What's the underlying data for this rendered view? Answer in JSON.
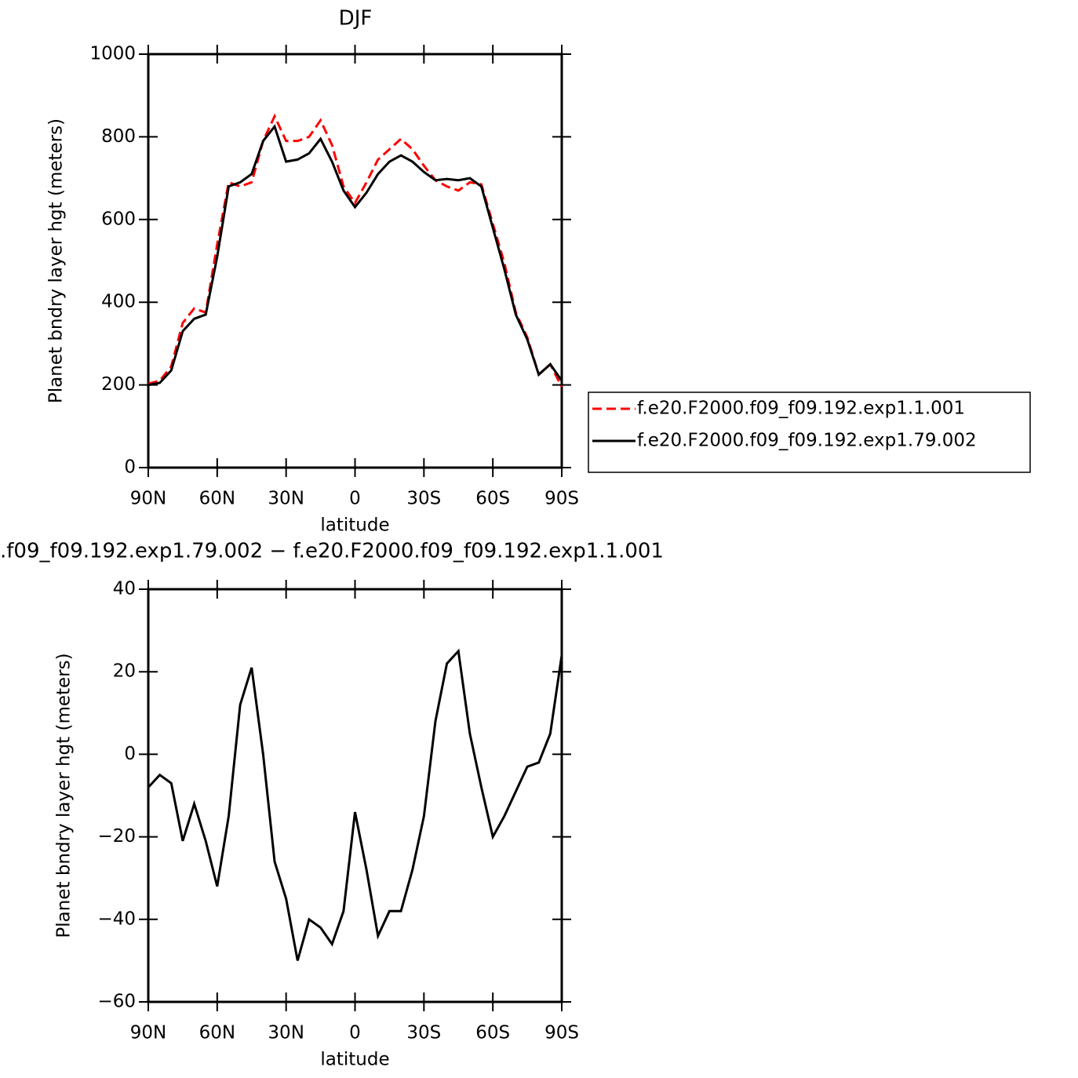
{
  "chart_data": [
    {
      "type": "line",
      "title": "DJF",
      "xlabel": "latitude",
      "ylabel": "Planet bndry layer hgt (meters)",
      "x": [
        90,
        85,
        80,
        75,
        70,
        65,
        60,
        55,
        50,
        45,
        40,
        35,
        30,
        25,
        20,
        15,
        10,
        5,
        0,
        -5,
        -10,
        -15,
        -20,
        -25,
        -30,
        -35,
        -40,
        -45,
        -50,
        -55,
        -60,
        -65,
        -70,
        -75,
        -80,
        -85,
        -90
      ],
      "series": [
        {
          "name": "f.e20.F2000.f09_f09.192.exp1.1.001",
          "color": "#ff0000",
          "style": "dashed",
          "values": [
            203,
            210,
            245,
            350,
            385,
            375,
            540,
            690,
            680,
            690,
            790,
            850,
            790,
            790,
            800,
            840,
            780,
            680,
            640,
            690,
            745,
            770,
            795,
            770,
            730,
            695,
            680,
            670,
            690,
            685,
            590,
            495,
            375,
            315,
            225,
            250,
            195
          ]
        },
        {
          "name": "f.e20.F2000.f09_f09.192.exp1.79.002",
          "color": "#000000",
          "style": "solid",
          "values": [
            200,
            205,
            235,
            330,
            360,
            370,
            510,
            680,
            690,
            710,
            790,
            825,
            740,
            745,
            760,
            795,
            740,
            670,
            630,
            665,
            710,
            740,
            755,
            740,
            715,
            695,
            698,
            695,
            700,
            680,
            580,
            480,
            370,
            310,
            225,
            250,
            210
          ]
        }
      ],
      "xlim": [
        90,
        -90
      ],
      "xticks": [
        {
          "value": 90,
          "label": "90N"
        },
        {
          "value": 60,
          "label": "60N"
        },
        {
          "value": 30,
          "label": "30N"
        },
        0,
        {
          "value": -30,
          "label": "30S"
        },
        {
          "value": -60,
          "label": "60S"
        },
        {
          "value": -90,
          "label": "90S"
        }
      ],
      "ylim": [
        0,
        1000
      ],
      "yticks": [
        0,
        200,
        400,
        600,
        800,
        1000
      ],
      "legend": "right"
    },
    {
      "type": "line",
      "title": ".f09_f09.192.exp1.79.002 − f.e20.F2000.f09_f09.192.exp1.1.001",
      "xlabel": "latitude",
      "ylabel": "Planet bndry layer hgt (meters)",
      "x": [
        90,
        85,
        80,
        75,
        70,
        65,
        60,
        55,
        50,
        45,
        40,
        35,
        30,
        25,
        20,
        15,
        10,
        5,
        0,
        -5,
        -10,
        -15,
        -20,
        -25,
        -30,
        -35,
        -40,
        -45,
        -50,
        -55,
        -60,
        -65,
        -70,
        -75,
        -80,
        -85,
        -90
      ],
      "series": [
        {
          "color": "#000000",
          "style": "solid",
          "values": [
            -8,
            -5,
            -7,
            -21,
            -12,
            -21,
            -32,
            -15,
            12,
            21,
            0,
            -26,
            -35,
            -50,
            -40,
            -42,
            -46,
            -38,
            -14,
            -28,
            -44,
            -38,
            -38,
            -28,
            -15,
            8,
            22,
            25,
            5,
            -8,
            -20,
            -15,
            -9,
            -3,
            -2,
            5,
            24
          ]
        }
      ],
      "xlim": [
        90,
        -90
      ],
      "xticks": [
        {
          "value": 90,
          "label": "90N"
        },
        {
          "value": 60,
          "label": "60N"
        },
        {
          "value": 30,
          "label": "30N"
        },
        0,
        {
          "value": -30,
          "label": "30S"
        },
        {
          "value": -60,
          "label": "60S"
        },
        {
          "value": -90,
          "label": "90S"
        }
      ],
      "ylim": [
        -60,
        40
      ],
      "yticks": [
        {
          "value": -60,
          "label": "−60"
        },
        {
          "value": -40,
          "label": "−40"
        },
        {
          "value": -20,
          "label": "−20"
        },
        0,
        20,
        40
      ]
    }
  ]
}
